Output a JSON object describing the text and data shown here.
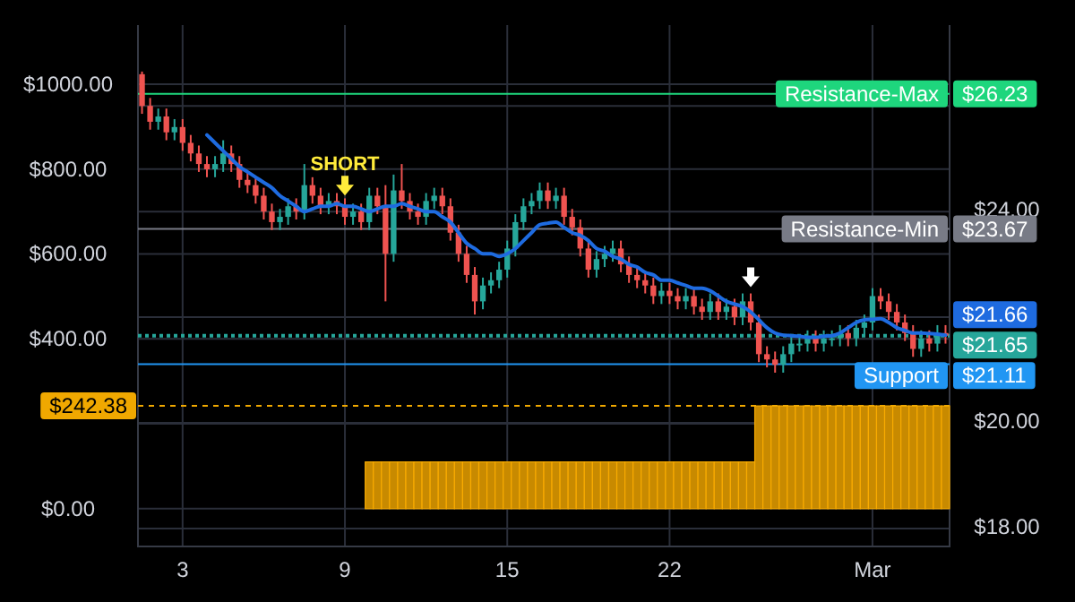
{
  "chart_data": {
    "type": "candlestick",
    "categories": [
      null,
      null,
      null,
      null,
      null,
      "3",
      null,
      null,
      null,
      null,
      null,
      null,
      null,
      null,
      null,
      null,
      null,
      null,
      null,
      null,
      null,
      null,
      null,
      null,
      null,
      "9",
      null,
      null,
      null,
      null,
      null,
      null,
      null,
      null,
      null,
      null,
      null,
      null,
      null,
      null,
      null,
      null,
      null,
      null,
      null,
      "15",
      null,
      null,
      null,
      null,
      null,
      null,
      null,
      null,
      null,
      null,
      null,
      null,
      null,
      null,
      null,
      null,
      null,
      null,
      null,
      "22",
      null,
      null,
      null,
      null,
      null,
      null,
      null,
      null,
      null,
      null,
      null,
      null,
      null,
      null,
      null,
      null,
      null,
      null,
      null,
      null,
      null,
      null,
      null,
      null,
      "Mar",
      null,
      null,
      null,
      null,
      null,
      null,
      null,
      null,
      null
    ],
    "ohlc": [
      [
        26.6,
        26.65,
        25.85,
        26.0
      ],
      [
        26.0,
        26.15,
        25.55,
        25.7
      ],
      [
        25.7,
        25.95,
        25.55,
        25.8
      ],
      [
        25.8,
        25.95,
        25.35,
        25.5
      ],
      [
        25.5,
        25.75,
        25.35,
        25.6
      ],
      [
        25.6,
        25.75,
        25.15,
        25.3
      ],
      [
        25.3,
        25.45,
        24.95,
        25.1
      ],
      [
        25.1,
        25.25,
        24.75,
        24.9
      ],
      [
        24.9,
        25.05,
        24.65,
        24.8
      ],
      [
        24.8,
        25.05,
        24.65,
        24.9
      ],
      [
        24.9,
        25.35,
        24.75,
        25.1
      ],
      [
        25.1,
        25.25,
        24.75,
        24.9
      ],
      [
        24.9,
        25.05,
        24.45,
        24.6
      ],
      [
        24.6,
        24.75,
        24.35,
        24.5
      ],
      [
        24.5,
        24.65,
        24.15,
        24.3
      ],
      [
        24.3,
        24.45,
        23.85,
        24.0
      ],
      [
        24.0,
        24.15,
        23.65,
        23.8
      ],
      [
        23.8,
        24.05,
        23.65,
        23.9
      ],
      [
        23.9,
        24.25,
        23.75,
        24.1
      ],
      [
        24.1,
        24.25,
        23.85,
        24.0
      ],
      [
        24.0,
        24.9,
        23.85,
        24.5
      ],
      [
        24.5,
        24.65,
        24.15,
        24.3
      ],
      [
        24.3,
        24.45,
        23.95,
        24.1
      ],
      [
        24.1,
        24.35,
        23.95,
        24.2
      ],
      [
        24.2,
        24.35,
        23.95,
        24.1
      ],
      [
        24.1,
        24.25,
        23.75,
        23.9
      ],
      [
        23.9,
        24.15,
        23.75,
        24.0
      ],
      [
        24.0,
        24.15,
        23.65,
        23.8
      ],
      [
        23.8,
        24.45,
        23.65,
        24.3
      ],
      [
        24.3,
        24.45,
        23.95,
        24.1
      ],
      [
        24.1,
        24.5,
        22.3,
        23.2
      ],
      [
        23.2,
        24.7,
        23.05,
        24.4
      ],
      [
        24.4,
        24.9,
        24.05,
        24.2
      ],
      [
        24.2,
        24.35,
        23.85,
        24.0
      ],
      [
        24.0,
        24.15,
        23.75,
        23.9
      ],
      [
        23.9,
        24.35,
        23.75,
        24.2
      ],
      [
        24.2,
        24.45,
        24.05,
        24.3
      ],
      [
        24.3,
        24.45,
        23.95,
        24.1
      ],
      [
        24.1,
        24.25,
        23.45,
        23.6
      ],
      [
        23.6,
        23.75,
        23.05,
        23.2
      ],
      [
        23.2,
        23.35,
        22.65,
        22.8
      ],
      [
        22.8,
        22.95,
        22.05,
        22.3
      ],
      [
        22.3,
        22.75,
        22.15,
        22.6
      ],
      [
        22.6,
        22.85,
        22.45,
        22.7
      ],
      [
        22.7,
        23.05,
        22.55,
        22.9
      ],
      [
        22.9,
        23.45,
        22.75,
        23.3
      ],
      [
        23.3,
        23.95,
        23.15,
        23.8
      ],
      [
        23.8,
        24.25,
        23.65,
        24.1
      ],
      [
        24.1,
        24.35,
        23.95,
        24.2
      ],
      [
        24.2,
        24.55,
        24.05,
        24.4
      ],
      [
        24.4,
        24.55,
        24.05,
        24.2
      ],
      [
        24.2,
        24.45,
        24.05,
        24.3
      ],
      [
        24.3,
        24.45,
        23.75,
        23.9
      ],
      [
        23.9,
        24.05,
        23.55,
        23.7
      ],
      [
        23.7,
        23.85,
        23.15,
        23.3
      ],
      [
        23.3,
        23.45,
        22.75,
        22.9
      ],
      [
        22.9,
        23.25,
        22.75,
        23.1
      ],
      [
        23.1,
        23.35,
        22.95,
        23.2
      ],
      [
        23.2,
        23.45,
        23.05,
        23.3
      ],
      [
        23.3,
        23.45,
        22.85,
        23.0
      ],
      [
        23.0,
        23.15,
        22.65,
        22.8
      ],
      [
        22.8,
        22.95,
        22.55,
        22.7
      ],
      [
        22.7,
        22.85,
        22.45,
        22.6
      ],
      [
        22.6,
        22.75,
        22.25,
        22.4
      ],
      [
        22.4,
        22.65,
        22.25,
        22.5
      ],
      [
        22.5,
        22.65,
        22.25,
        22.4
      ],
      [
        22.4,
        22.55,
        22.15,
        22.3
      ],
      [
        22.3,
        22.55,
        22.15,
        22.4
      ],
      [
        22.4,
        22.55,
        22.05,
        22.2
      ],
      [
        22.2,
        22.35,
        21.95,
        22.1
      ],
      [
        22.1,
        22.45,
        21.95,
        22.3
      ],
      [
        22.3,
        22.45,
        21.95,
        22.1
      ],
      [
        22.1,
        22.35,
        21.95,
        22.2
      ],
      [
        22.2,
        22.35,
        21.85,
        22.0
      ],
      [
        22.0,
        22.45,
        21.85,
        22.3
      ],
      [
        22.3,
        22.45,
        21.75,
        21.9
      ],
      [
        21.9,
        22.05,
        21.15,
        21.3
      ],
      [
        21.3,
        21.45,
        21.05,
        21.2
      ],
      [
        21.2,
        21.35,
        20.95,
        21.1
      ],
      [
        21.1,
        21.45,
        20.95,
        21.3
      ],
      [
        21.3,
        21.65,
        21.15,
        21.5
      ],
      [
        21.5,
        21.65,
        21.35,
        21.5
      ],
      [
        21.5,
        21.75,
        21.35,
        21.6
      ],
      [
        21.6,
        21.75,
        21.35,
        21.5
      ],
      [
        21.5,
        21.75,
        21.35,
        21.6
      ],
      [
        21.6,
        21.75,
        21.45,
        21.6
      ],
      [
        21.6,
        21.85,
        21.45,
        21.7
      ],
      [
        21.7,
        21.85,
        21.45,
        21.6
      ],
      [
        21.6,
        21.95,
        21.45,
        21.8
      ],
      [
        21.8,
        22.05,
        21.65,
        21.9
      ],
      [
        21.9,
        22.55,
        21.75,
        22.4
      ],
      [
        22.4,
        22.55,
        22.15,
        22.3
      ],
      [
        22.3,
        22.45,
        21.95,
        22.1
      ],
      [
        22.1,
        22.25,
        21.75,
        21.9
      ],
      [
        21.9,
        22.05,
        21.55,
        21.7
      ],
      [
        21.7,
        21.85,
        21.25,
        21.4
      ],
      [
        21.4,
        21.75,
        21.25,
        21.6
      ],
      [
        21.6,
        21.75,
        21.35,
        21.5
      ],
      [
        21.5,
        21.85,
        21.35,
        21.7
      ],
      [
        21.7,
        21.85,
        21.5,
        21.65
      ]
    ],
    "series": [
      {
        "type": "line",
        "color": "#1e6be0",
        "values": [
          null,
          null,
          null,
          null,
          null,
          null,
          null,
          null,
          25.45,
          25.3,
          25.15,
          25.0,
          24.85,
          24.75,
          24.65,
          24.55,
          24.45,
          24.3,
          24.2,
          24.1,
          24.0,
          24.05,
          24.1,
          24.1,
          24.15,
          24.1,
          24.1,
          24.05,
          24.0,
          24.05,
          24.1,
          24.1,
          24.15,
          24.1,
          24.05,
          24.0,
          24.0,
          23.9,
          23.8,
          23.6,
          23.4,
          23.3,
          23.2,
          23.2,
          23.15,
          23.2,
          23.3,
          23.45,
          23.6,
          23.75,
          23.78,
          23.8,
          23.7,
          23.6,
          23.55,
          23.45,
          23.3,
          23.25,
          23.15,
          23.1,
          23.0,
          22.95,
          22.85,
          22.8,
          22.7,
          22.7,
          22.65,
          22.6,
          22.55,
          22.55,
          22.5,
          22.4,
          22.3,
          22.25,
          22.2,
          22.1,
          21.95,
          21.8,
          21.7,
          21.66,
          21.65,
          21.64,
          21.62,
          21.62,
          21.64,
          21.65,
          21.7,
          21.8,
          21.9,
          21.95,
          21.96,
          21.97,
          21.9,
          21.8,
          21.75,
          21.7,
          21.7,
          21.69,
          21.68,
          21.66
        ],
        "value_labels": [
          null,
          null,
          null,
          null,
          null,
          null,
          null,
          null,
          null,
          null,
          null,
          null,
          null,
          null,
          null,
          null,
          null,
          null,
          null,
          null,
          null,
          null,
          null,
          null,
          null,
          null,
          null,
          null,
          null,
          null,
          null,
          null,
          null,
          null,
          null,
          null,
          null,
          null,
          null,
          null,
          null,
          null,
          null,
          null,
          null,
          null,
          null,
          null,
          null,
          null,
          null,
          null,
          null,
          null,
          null,
          null,
          null,
          null,
          null,
          null,
          null,
          null,
          null,
          null,
          null,
          null,
          null,
          null,
          null,
          null,
          null,
          null,
          null,
          null,
          null,
          null,
          null,
          null,
          null,
          null,
          null,
          null,
          null,
          null,
          null,
          null,
          null,
          null,
          null,
          null,
          null,
          null,
          null,
          null,
          null,
          null,
          null,
          null,
          null,
          "$21.66"
        ]
      },
      {
        "type": "bar",
        "axis": "y2",
        "color": "#c88a00",
        "values": [
          0,
          0,
          0,
          0,
          0,
          0,
          0,
          0,
          0,
          0,
          0,
          0,
          0,
          0,
          0,
          0,
          0,
          0,
          0,
          0,
          0,
          0,
          0,
          0,
          0,
          0,
          0,
          0,
          110,
          110,
          110,
          110,
          110,
          110,
          110,
          110,
          110,
          110,
          110,
          110,
          110,
          110,
          110,
          110,
          110,
          110,
          110,
          110,
          110,
          110,
          110,
          110,
          110,
          110,
          110,
          110,
          110,
          110,
          110,
          110,
          110,
          110,
          110,
          110,
          110,
          110,
          110,
          110,
          110,
          110,
          110,
          110,
          110,
          110,
          110,
          110,
          242,
          242,
          242,
          242,
          242,
          242,
          242,
          242,
          242,
          242,
          242,
          242,
          242,
          242,
          242,
          242,
          242,
          242,
          242,
          242,
          242,
          242,
          242,
          242
        ]
      }
    ],
    "ylim": [
      17.66,
      27.53
    ],
    "yticks": [
      {
        "value": 18,
        "label": "$18.00"
      },
      {
        "value": 20,
        "label": "$20.00"
      },
      {
        "value": 22,
        "label": null
      },
      {
        "value": 24,
        "label": "$24.00"
      },
      {
        "value": 26,
        "label": null
      }
    ],
    "y2lim": [
      -89,
      1139
    ],
    "y2ticks": [
      {
        "value": 0,
        "label": "$0.00"
      },
      {
        "value": 200,
        "label": null
      },
      {
        "value": 400,
        "label": "$400.00"
      },
      {
        "value": 600,
        "label": "$600.00"
      },
      {
        "value": 800,
        "label": "$800.00"
      },
      {
        "value": 1000,
        "label": "$1000.00"
      }
    ],
    "grid": true,
    "ref_lines": [
      {
        "axis": "y",
        "value": 26.23,
        "label": "Resistance-Max",
        "color": "#1ed67d",
        "line_style": "solid"
      },
      {
        "axis": "y",
        "value": 23.67,
        "label": "Resistance-Min",
        "color": "#787b86",
        "line_style": "solid"
      },
      {
        "axis": "y",
        "value": 21.11,
        "label": "Support",
        "color": "#2196f3",
        "line_style": "solid"
      },
      {
        "axis": "y",
        "value": 21.65,
        "label": "$21.65",
        "color": "#26a69a",
        "line_style": "dotted"
      },
      {
        "axis": "y2",
        "value": 242.38,
        "label": "$242.38",
        "color": "#f0a800",
        "line_style": "dashed"
      }
    ],
    "annotations": [
      {
        "text": "SHORT",
        "x": "9",
        "y": 24.2
      },
      "$26.23",
      "$23.67",
      "$21.11"
    ]
  }
}
